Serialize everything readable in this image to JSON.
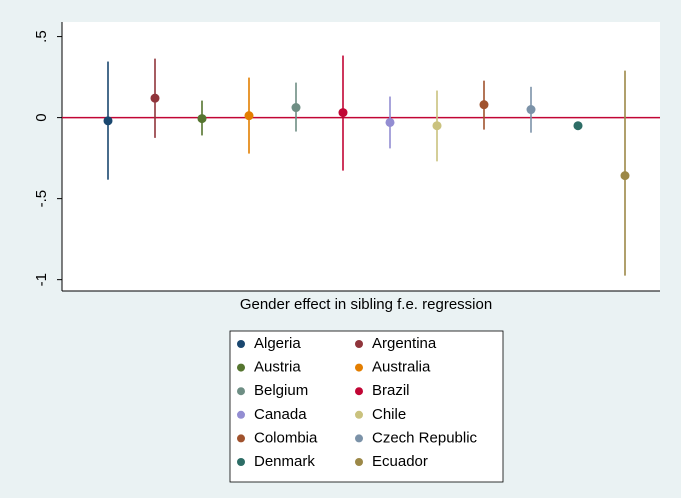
{
  "chart_data": {
    "type": "errorbar",
    "xlabel": "Gender effect in sibling f.e. regression",
    "ylim": [
      -1.07,
      0.59
    ],
    "yticks": [
      {
        "value": 0.5,
        "label": ".5"
      },
      0,
      {
        "value": -0.5,
        "label": "-.5"
      },
      -1
    ],
    "yline": 0,
    "yline_color": "#c10534",
    "series": [
      {
        "name": "Algeria",
        "color": "#1a476f",
        "value": -0.02,
        "ci": [
          -0.383,
          0.346
        ]
      },
      {
        "name": "Argentina",
        "color": "#90353b",
        "value": 0.12,
        "ci": [
          -0.125,
          0.364
        ]
      },
      {
        "name": "Austria",
        "color": "#55752f",
        "value": -0.006,
        "ci": [
          -0.11,
          0.105
        ]
      },
      {
        "name": "Australia",
        "color": "#e37e00",
        "value": 0.012,
        "ci": [
          -0.222,
          0.247
        ]
      },
      {
        "name": "Belgium",
        "color": "#6e8e84",
        "value": 0.062,
        "ci": [
          -0.086,
          0.216
        ]
      },
      {
        "name": "Brazil",
        "color": "#c10534",
        "value": 0.031,
        "ci": [
          -0.327,
          0.383
        ]
      },
      {
        "name": "Canada",
        "color": "#938dd2",
        "value": -0.03,
        "ci": [
          -0.19,
          0.13
        ]
      },
      {
        "name": "Chile",
        "color": "#cac27e",
        "value": -0.05,
        "ci": [
          -0.27,
          0.167
        ]
      },
      {
        "name": "Colombia",
        "color": "#a0522d",
        "value": 0.08,
        "ci": [
          -0.074,
          0.228
        ]
      },
      {
        "name": "Czech Republic",
        "color": "#7b92a8",
        "value": 0.05,
        "ci": [
          -0.093,
          0.19
        ]
      },
      {
        "name": "Denmark",
        "color": "#2d6d66",
        "value": -0.05,
        "ci": [
          -0.06,
          -0.04
        ]
      },
      {
        "name": "Ecuador",
        "color": "#9c8847",
        "value": -0.358,
        "ci": [
          -0.975,
          0.29
        ]
      }
    ]
  }
}
